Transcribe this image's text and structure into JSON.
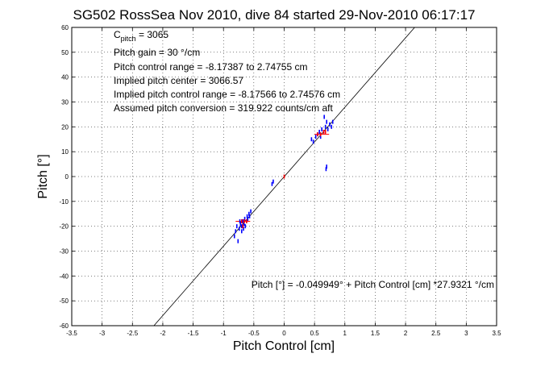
{
  "chart_data": {
    "type": "scatter",
    "title": "SG502 RossSea Nov 2010, dive 84 started 29-Nov-2010 06:17:17",
    "xlabel": "Pitch Control [cm]",
    "ylabel": "Pitch [°]",
    "xlim": [
      -3.5,
      3.5
    ],
    "ylim": [
      -60,
      60
    ],
    "xticks": [
      "-3.5",
      "-3",
      "-2.5",
      "-2",
      "-1.5",
      "-1",
      "-0.5",
      "0",
      "0.5",
      "1",
      "1.5",
      "2",
      "2.5",
      "3",
      "3.5"
    ],
    "yticks": [
      "60",
      "50",
      "40",
      "30",
      "20",
      "10",
      "0",
      "-10",
      "-20",
      "-30",
      "-40",
      "-50",
      "-60"
    ],
    "grid": true,
    "annotations": {
      "c_pitch_label": "C",
      "c_pitch_sub": "pitch",
      "c_pitch_value": " = 3065",
      "pitch_gain": "Pitch gain = 30 °/cm",
      "control_range": "Pitch control range = -8.17387 to 2.74755 cm",
      "implied_center": "Implied pitch center = 3066.57",
      "implied_range": "Implied pitch control range = -8.17566 to 2.74576 cm",
      "conversion": "Assumed pitch conversion = 319.922 counts/cm aft",
      "fit_equation": "Pitch [°] = -0.049949° + Pitch Control [cm] *27.9321 °/cm"
    },
    "fit_line": {
      "intercept": -0.049949,
      "slope": 27.9321
    },
    "series": [
      {
        "color": "#0000ff",
        "points": [
          [
            -0.82,
            -24
          ],
          [
            -0.8,
            -22
          ],
          [
            -0.78,
            -20
          ],
          [
            -0.76,
            -26
          ],
          [
            -0.74,
            -21
          ],
          [
            -0.72,
            -19
          ],
          [
            -0.7,
            -20
          ],
          [
            -0.68,
            -18
          ],
          [
            -0.66,
            -19
          ],
          [
            -0.65,
            -17
          ],
          [
            -0.64,
            -20
          ],
          [
            -0.62,
            -18
          ],
          [
            -0.61,
            -16
          ],
          [
            -0.6,
            -17
          ],
          [
            -0.58,
            -15
          ],
          [
            -0.57,
            -16
          ],
          [
            -0.55,
            -14
          ],
          [
            -0.7,
            -22
          ],
          [
            -0.73,
            -18
          ],
          [
            -0.67,
            -21
          ],
          [
            -0.2,
            -3
          ],
          [
            -0.18,
            -2
          ],
          [
            0.45,
            15
          ],
          [
            0.48,
            14
          ],
          [
            0.52,
            16
          ],
          [
            0.55,
            17
          ],
          [
            0.58,
            18
          ],
          [
            0.6,
            16
          ],
          [
            0.62,
            19
          ],
          [
            0.65,
            18
          ],
          [
            0.68,
            20
          ],
          [
            0.7,
            22
          ],
          [
            0.72,
            19
          ],
          [
            0.75,
            21
          ],
          [
            0.78,
            20
          ],
          [
            0.8,
            22
          ],
          [
            0.66,
            24
          ],
          [
            0.7,
            4
          ],
          [
            0.69,
            3
          ]
        ]
      },
      {
        "color": "#ff0000",
        "points": [
          [
            -0.7,
            -18
          ],
          [
            -0.66,
            -18
          ],
          [
            -0.62,
            -18
          ],
          [
            -0.68,
            -20
          ],
          [
            0.0,
            0
          ],
          [
            0.55,
            17
          ],
          [
            0.6,
            17
          ],
          [
            0.65,
            18
          ],
          [
            0.68,
            18
          ]
        ]
      }
    ],
    "error_bars": [
      {
        "x": -0.68,
        "y": -18,
        "xerr": 0.12,
        "color": "#ff0000"
      },
      {
        "x": 0.62,
        "y": 17,
        "xerr": 0.12,
        "color": "#ff0000"
      }
    ]
  }
}
